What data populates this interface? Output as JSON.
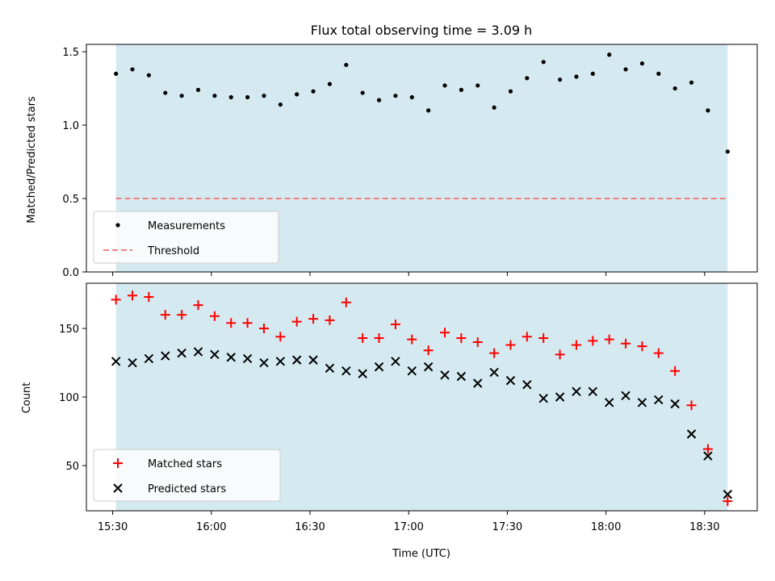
{
  "chart_data": [
    {
      "type": "scatter",
      "panel": "top",
      "title": "Flux total observing time = 3.09 h",
      "ylabel": "Matched/Predicted stars",
      "xlabel": "",
      "ylim": [
        0,
        1.55
      ],
      "yticks": [
        0.0,
        0.5,
        1.0,
        1.5
      ],
      "ytick_labels": [
        "0.0",
        "0.5",
        "1.0",
        "1.5"
      ],
      "observing_span": [
        "15:31",
        "18:37"
      ],
      "x": [
        "15:31",
        "15:36",
        "15:41",
        "15:46",
        "15:51",
        "15:56",
        "16:01",
        "16:06",
        "16:11",
        "16:16",
        "16:21",
        "16:26",
        "16:31",
        "16:36",
        "16:41",
        "16:46",
        "16:51",
        "16:56",
        "17:01",
        "17:06",
        "17:11",
        "17:16",
        "17:21",
        "17:26",
        "17:31",
        "17:36",
        "17:41",
        "17:46",
        "17:51",
        "17:56",
        "18:01",
        "18:06",
        "18:11",
        "18:16",
        "18:21",
        "18:26",
        "18:31",
        "18:37"
      ],
      "series": [
        {
          "name": "Measurements",
          "color": "#000000",
          "marker": "dot",
          "values": [
            1.35,
            1.38,
            1.34,
            1.22,
            1.2,
            1.24,
            1.2,
            1.19,
            1.19,
            1.2,
            1.14,
            1.21,
            1.23,
            1.28,
            1.41,
            1.22,
            1.17,
            1.2,
            1.19,
            1.1,
            1.27,
            1.24,
            1.27,
            1.12,
            1.23,
            1.32,
            1.43,
            1.31,
            1.33,
            1.35,
            1.48,
            1.38,
            1.42,
            1.35,
            1.25,
            1.29,
            1.1,
            0.82
          ]
        },
        {
          "name": "Threshold",
          "color": "#f08080",
          "style": "dashed",
          "values": [
            0.5
          ]
        }
      ],
      "legend_position": "lower-left",
      "shaded_color": "#d4eaf0"
    },
    {
      "type": "scatter",
      "panel": "bottom",
      "title": "",
      "xlabel": "Time (UTC)",
      "ylabel": "Count",
      "ylim": [
        17,
        183
      ],
      "yticks": [
        50,
        100,
        150
      ],
      "ytick_labels": [
        "50",
        "100",
        "150"
      ],
      "xticks": [
        "15:30",
        "16:00",
        "16:30",
        "17:00",
        "17:30",
        "18:00",
        "18:30"
      ],
      "xlim": [
        "15:22",
        "18:46"
      ],
      "observing_span": [
        "15:31",
        "18:37"
      ],
      "x": [
        "15:31",
        "15:36",
        "15:41",
        "15:46",
        "15:51",
        "15:56",
        "16:01",
        "16:06",
        "16:11",
        "16:16",
        "16:21",
        "16:26",
        "16:31",
        "16:36",
        "16:41",
        "16:46",
        "16:51",
        "16:56",
        "17:01",
        "17:06",
        "17:11",
        "17:16",
        "17:21",
        "17:26",
        "17:31",
        "17:36",
        "17:41",
        "17:46",
        "17:51",
        "17:56",
        "18:01",
        "18:06",
        "18:11",
        "18:16",
        "18:21",
        "18:26",
        "18:31",
        "18:37"
      ],
      "series": [
        {
          "name": "Matched stars",
          "color": "#ff0000",
          "marker": "plus",
          "values": [
            171,
            174,
            173,
            160,
            160,
            167,
            159,
            154,
            154,
            150,
            144,
            155,
            157,
            156,
            169,
            143,
            143,
            153,
            142,
            134,
            147,
            143,
            140,
            132,
            138,
            144,
            143,
            131,
            138,
            141,
            142,
            139,
            137,
            132,
            119,
            94,
            62,
            24
          ]
        },
        {
          "name": "Predicted stars",
          "color": "#000000",
          "marker": "x",
          "values": [
            126,
            125,
            128,
            130,
            132,
            133,
            131,
            129,
            128,
            125,
            126,
            127,
            127,
            121,
            119,
            117,
            122,
            126,
            119,
            122,
            116,
            115,
            110,
            118,
            112,
            109,
            99,
            100,
            104,
            104,
            96,
            101,
            96,
            98,
            95,
            73,
            57,
            29
          ]
        }
      ],
      "legend_position": "lower-left",
      "shaded_color": "#d4eaf0"
    }
  ]
}
